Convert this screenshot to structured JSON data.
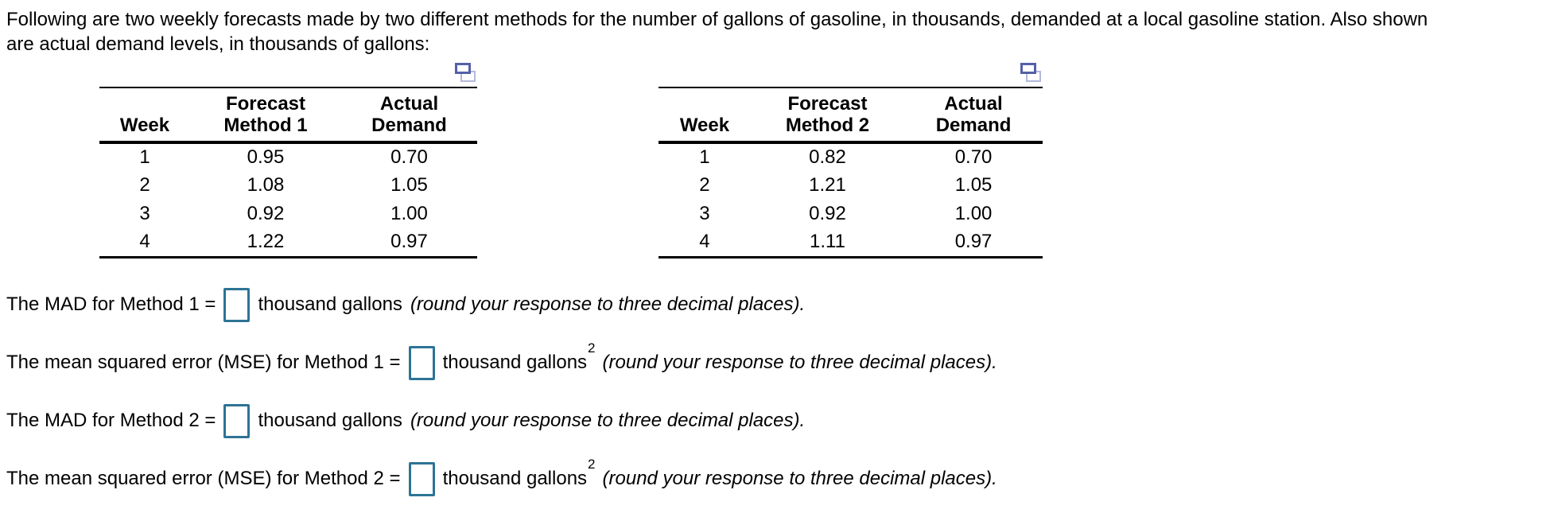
{
  "intro": {
    "line1": "Following are two weekly forecasts made by two different methods for the number of gallons of gasoline, in thousands, demanded at a local gasoline station. Also shown",
    "line2": "are actual demand levels, in thousands of gallons:"
  },
  "table1": {
    "header_row1": [
      "",
      "Forecast",
      "Actual"
    ],
    "header_row2": [
      "Week",
      "Method 1",
      "Demand"
    ],
    "rows": [
      [
        "1",
        "0.95",
        "0.70"
      ],
      [
        "2",
        "1.08",
        "1.05"
      ],
      [
        "3",
        "0.92",
        "1.00"
      ],
      [
        "4",
        "1.22",
        "0.97"
      ]
    ]
  },
  "table2": {
    "header_row1": [
      "",
      "Forecast",
      "Actual"
    ],
    "header_row2": [
      "Week",
      "Method 2",
      "Demand"
    ],
    "rows": [
      [
        "1",
        "0.82",
        "0.70"
      ],
      [
        "2",
        "1.21",
        "1.05"
      ],
      [
        "3",
        "0.92",
        "1.00"
      ],
      [
        "4",
        "1.11",
        "0.97"
      ]
    ]
  },
  "questions": [
    {
      "label": "The MAD for Method 1 =",
      "unit": "thousand gallons",
      "sup": "",
      "note": "(round your response to three decimal places)."
    },
    {
      "label": "The mean squared error (MSE) for Method 1 =",
      "unit": "thousand gallons",
      "sup": "2",
      "note": "(round your response to three decimal places)."
    },
    {
      "label": "The MAD for Method 2 =",
      "unit": "thousand gallons",
      "sup": "",
      "note": "(round your response to three decimal places)."
    },
    {
      "label": "The mean squared error (MSE) for Method 2 =",
      "unit": "thousand gallons",
      "sup": "2",
      "note": "(round your response to three decimal places)."
    }
  ],
  "inputs": {
    "mad_method_1": "",
    "mse_method_1": "",
    "mad_method_2": "",
    "mse_method_2": ""
  },
  "icons": {
    "popout": "popout-table-icon"
  },
  "colors": {
    "input_border": "#2d7396",
    "icon_dark": "#5560a8",
    "icon_light": "#b3b9dc",
    "text": "#000000"
  }
}
